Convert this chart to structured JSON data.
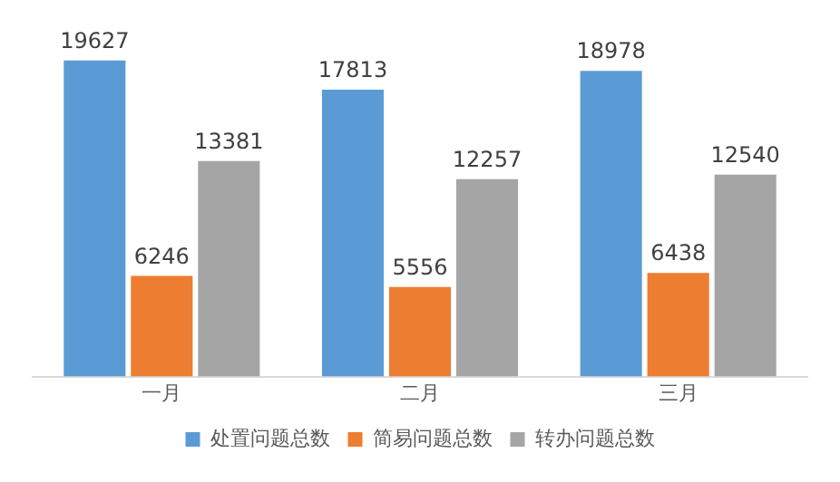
{
  "chart_data": {
    "type": "bar",
    "categories": [
      "一月",
      "二月",
      "三月"
    ],
    "series": [
      {
        "name": "处置问题总数",
        "color": "#5b9bd5",
        "values": [
          19627,
          17813,
          18978
        ]
      },
      {
        "name": "简易问题总数",
        "color": "#ed7d31",
        "values": [
          6246,
          5556,
          6438
        ]
      },
      {
        "name": "转办问题总数",
        "color": "#a5a5a5",
        "values": [
          13381,
          12257,
          12540
        ]
      }
    ],
    "data_labels": true,
    "legend": "bottom",
    "grid": false,
    "tick_labels": "x"
  }
}
